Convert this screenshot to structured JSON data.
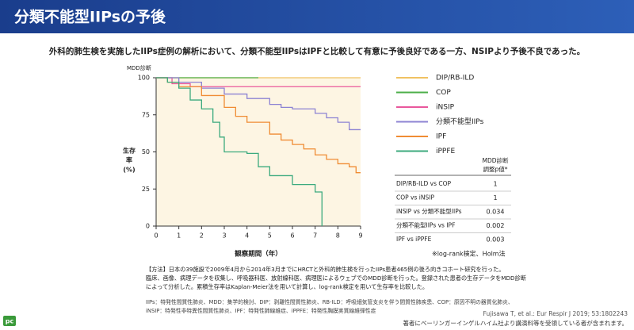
{
  "header": {
    "title": "分類不能型IIPsの予後",
    "subtitle": "外科的肺生検を実施したIIPs症例の解析において、分類不能型IIPsはIPFと比較して有意に予後良好である一方、NSIPより予後不良であった。"
  },
  "chart_data": {
    "type": "line",
    "step": true,
    "panel_label": "MDD診断",
    "xlabel": "観察期間（年）",
    "ylabel": [
      "生存",
      "率",
      "(%)"
    ],
    "xlim": [
      0,
      9
    ],
    "ylim": [
      0,
      100
    ],
    "xticks": [
      0,
      1,
      2,
      3,
      4,
      5,
      6,
      7,
      8,
      9
    ],
    "yticks": [
      0,
      25,
      50,
      75,
      100
    ],
    "grid": false,
    "legend": "right",
    "series": [
      {
        "name": "DIP/RB-ILD",
        "color": "#f0c262",
        "x": [
          0,
          9
        ],
        "values": [
          100,
          100
        ]
      },
      {
        "name": "COP",
        "color": "#4daf4a",
        "x": [
          0,
          4.5
        ],
        "values": [
          100,
          100
        ]
      },
      {
        "name": "iNSIP",
        "color": "#e9589c",
        "x": [
          0,
          0.7,
          1.5,
          9
        ],
        "values": [
          100,
          96,
          94,
          94
        ]
      },
      {
        "name": "分類不能型IIPs",
        "color": "#8d83d3",
        "x": [
          0,
          1,
          2,
          3,
          4,
          5,
          5.5,
          6,
          7,
          7.5,
          8,
          8.5,
          9
        ],
        "values": [
          100,
          97,
          93,
          89,
          86,
          82,
          80,
          79,
          76,
          73,
          70,
          65,
          65
        ]
      },
      {
        "name": "IPF",
        "color": "#f08c34",
        "x": [
          0,
          0.5,
          1,
          2,
          3,
          3.5,
          4,
          5,
          5.5,
          6,
          6.5,
          7,
          7.5,
          8,
          8.5,
          8.8,
          9
        ],
        "values": [
          100,
          97,
          94,
          88,
          80,
          74,
          70,
          62,
          58,
          55,
          52,
          48,
          45,
          42,
          40,
          36,
          36
        ]
      },
      {
        "name": "iPPFE",
        "color": "#3caa7e",
        "x": [
          0,
          0.5,
          1,
          1.5,
          2,
          2.5,
          2.8,
          3,
          4,
          4.5,
          5,
          6,
          7,
          7.3
        ],
        "values": [
          100,
          97,
          93,
          85,
          79,
          70,
          60,
          50,
          49,
          40,
          34,
          28,
          23,
          0
        ]
      }
    ]
  },
  "table": {
    "header": [
      "MDD診断",
      "調整p値*"
    ],
    "rows": [
      [
        "DIP/RB-ILD vs COP",
        "1"
      ],
      [
        "COP vs iNSIP",
        "1"
      ],
      [
        "iNSIP vs 分類不能型IIPs",
        "0.034"
      ],
      [
        "分類不能型IIPs vs IPF",
        "0.002"
      ],
      [
        "IPF vs iPPFE",
        "0.003"
      ]
    ],
    "note": "※log-rank検定、Holm法"
  },
  "method": [
    "【方法】日本の39施設で2009年4月から2014年3月までにHRCTと外科的肺生検を行ったIIPs患者465例の後ろ向きコホート研究を行った。",
    "臨床、画像、病理データを収集し、呼吸器科医、放射線科医、病理医によるウェブでのMDD診断を行った。登録された患者の生存データをMDD診断",
    "によって分析した。累積生存率はKaplan-Meier法を用いて計算し、log-rank検定を用いて生存率を比較した。"
  ],
  "abbreviations": [
    "IIPs：特発性間質性肺炎、MDD：集学的検討、DIP：剥離性間質性肺炎、RB-ILD：呼吸細気管支炎を伴う間質性肺疾患、COP：原因不明の器質化肺炎、",
    "iNSIP：特発性非特異性間質性肺炎、IPF：特発性肺線維症、iPPFE：特発性胸膜実質線維弾性症"
  ],
  "citation": "Fujisawa T, et al.: Eur Respir J 2019; 53:1802243",
  "disclosure": "著者にベーリンガーインゲルハイム社より講演料等を受領している者が含まれます。",
  "logo": "pc"
}
